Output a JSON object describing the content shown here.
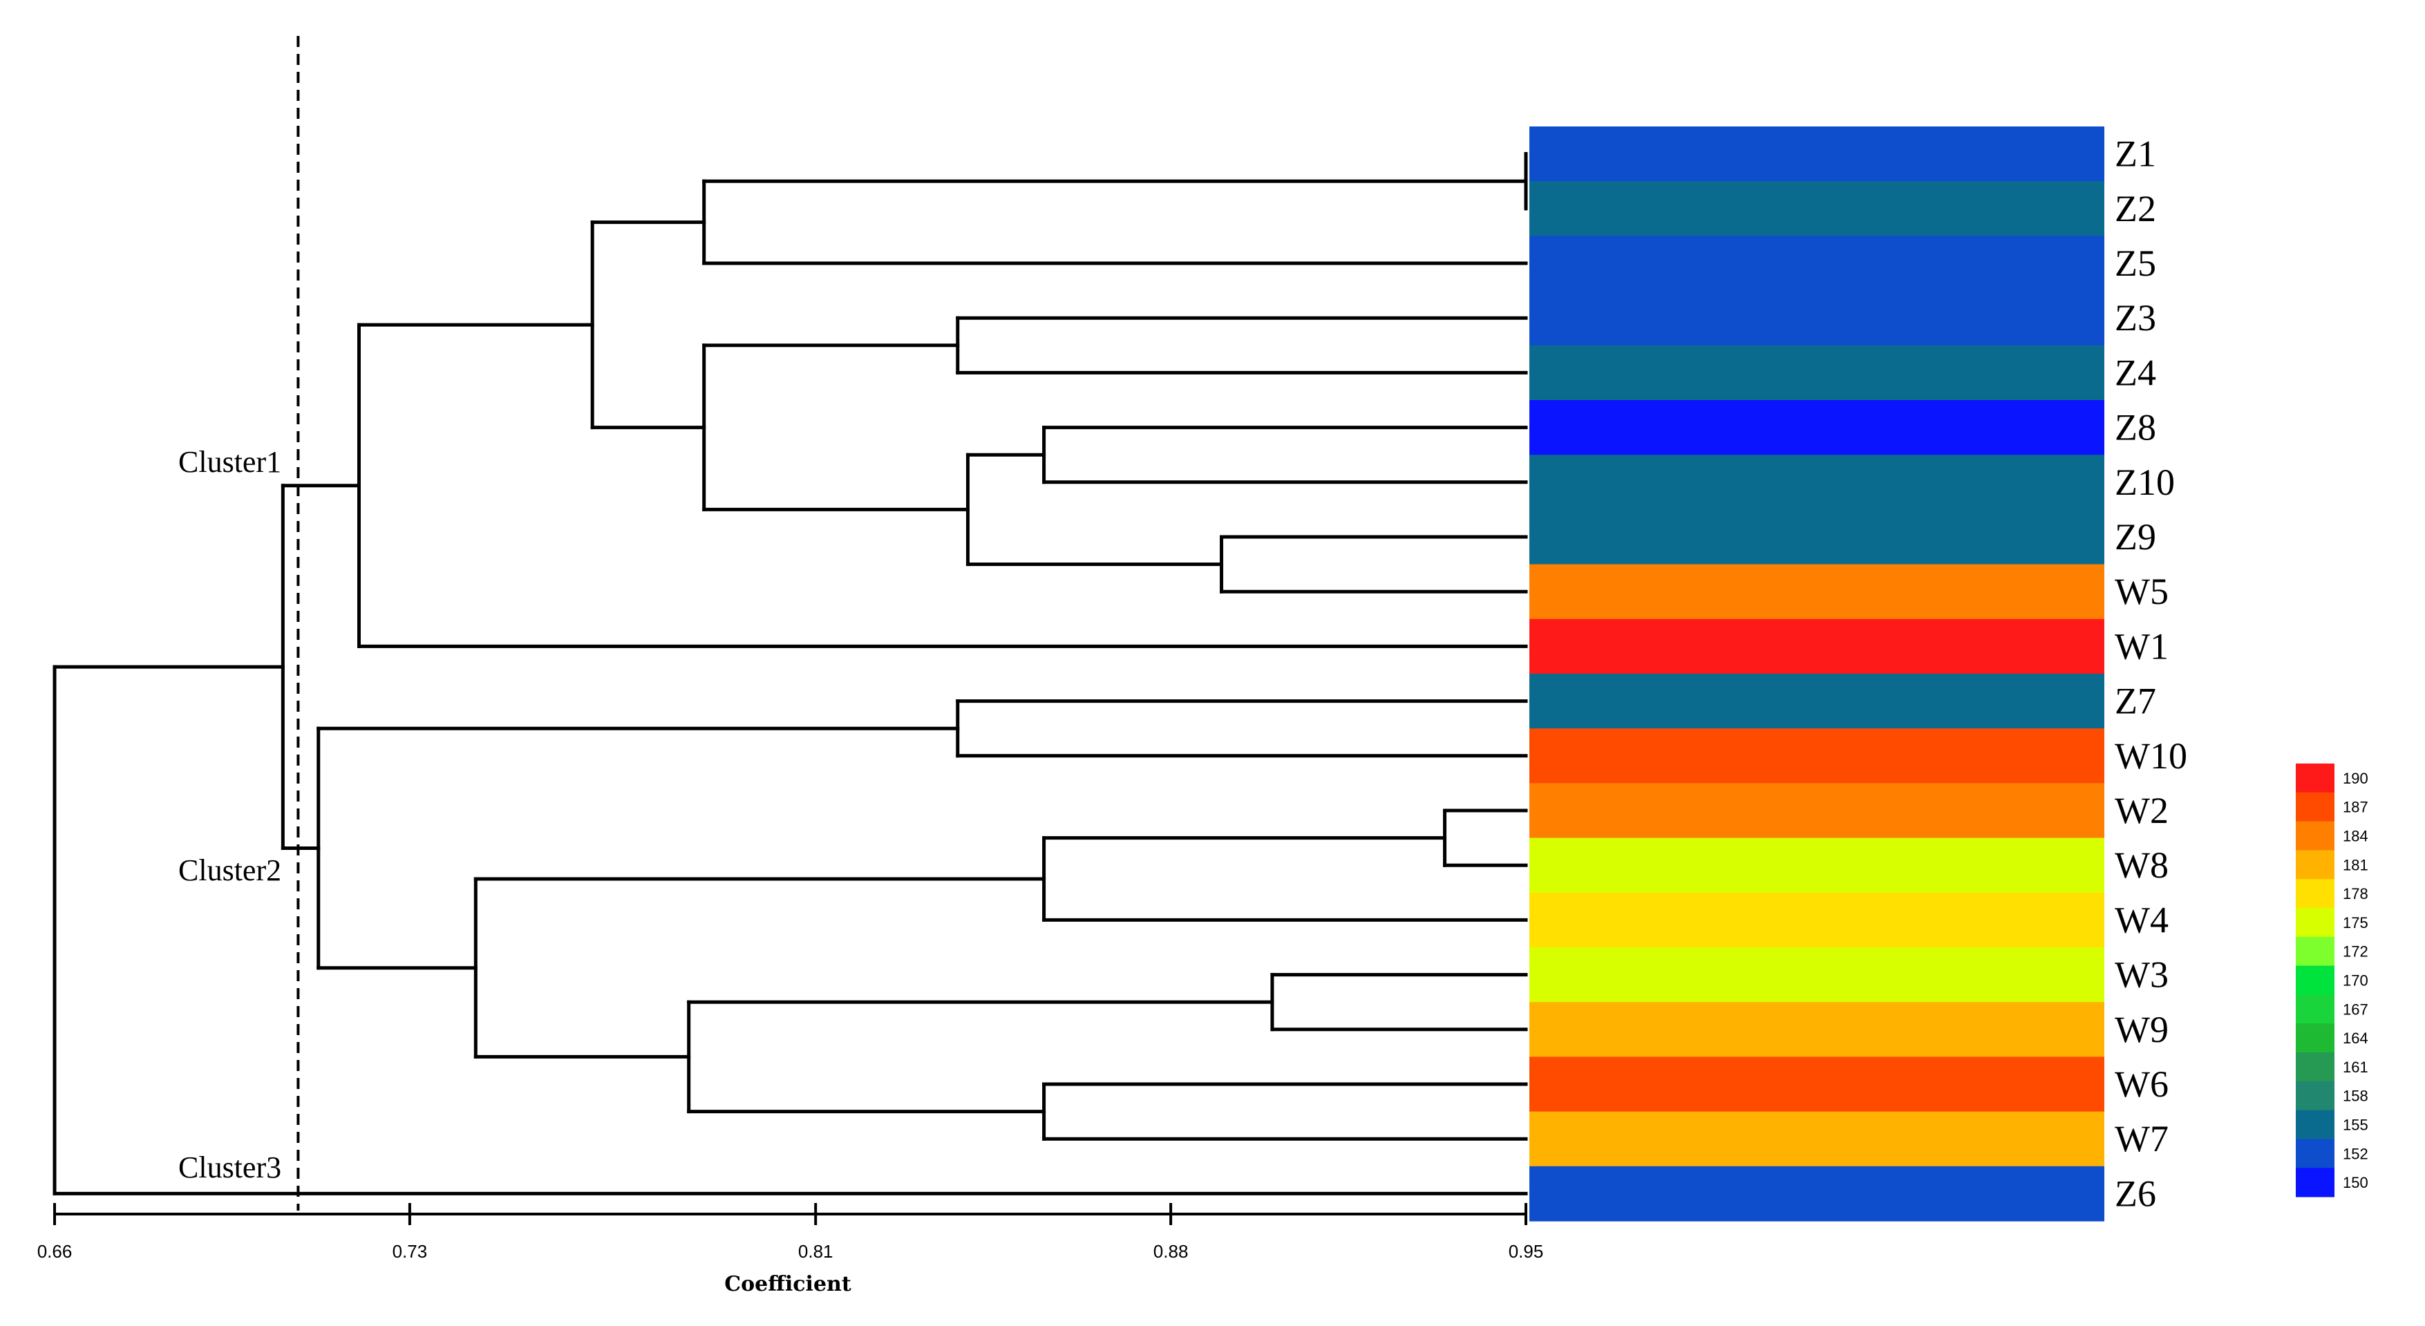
{
  "axis": {
    "title": "Coefficient",
    "ticks": [
      "0.66",
      "0.73",
      "0.81",
      "0.88",
      "0.95"
    ],
    "min": 0.66,
    "max": 0.95,
    "cutoff": 0.708
  },
  "clusters": [
    {
      "id": "c1",
      "label": "Cluster1"
    },
    {
      "id": "c2",
      "label": "Cluster2"
    },
    {
      "id": "c3",
      "label": "Cluster3"
    }
  ],
  "leaves": [
    {
      "label": "Z1",
      "value": 152
    },
    {
      "label": "Z2",
      "value": 155
    },
    {
      "label": "Z5",
      "value": 152
    },
    {
      "label": "Z3",
      "value": 152
    },
    {
      "label": "Z4",
      "value": 155
    },
    {
      "label": "Z8",
      "value": 150
    },
    {
      "label": "Z10",
      "value": 155
    },
    {
      "label": "Z9",
      "value": 155
    },
    {
      "label": "W5",
      "value": 184
    },
    {
      "label": "W1",
      "value": 190
    },
    {
      "label": "Z7",
      "value": 155
    },
    {
      "label": "W10",
      "value": 187
    },
    {
      "label": "W2",
      "value": 184
    },
    {
      "label": "W8",
      "value": 175
    },
    {
      "label": "W4",
      "value": 178
    },
    {
      "label": "W3",
      "value": 175
    },
    {
      "label": "W9",
      "value": 181
    },
    {
      "label": "W6",
      "value": 187
    },
    {
      "label": "W7",
      "value": 181
    },
    {
      "label": "Z6",
      "value": 152
    }
  ],
  "tree": {
    "h": 0.66,
    "c": [
      {
        "h": 0.705,
        "c": [
          {
            "h": 0.72,
            "c": [
              {
                "h": 0.766,
                "c": [
                  {
                    "h": 0.788,
                    "c": [
                      {
                        "h": 0.95,
                        "c": [
                          0,
                          1
                        ]
                      },
                      2
                    ]
                  },
                  {
                    "h": 0.788,
                    "c": [
                      {
                        "h": 0.838,
                        "c": [
                          3,
                          4
                        ]
                      },
                      {
                        "h": 0.84,
                        "c": [
                          {
                            "h": 0.855,
                            "c": [
                              5,
                              6
                            ]
                          },
                          {
                            "h": 0.89,
                            "c": [
                              7,
                              8
                            ]
                          }
                        ]
                      }
                    ]
                  }
                ]
              },
              9
            ]
          },
          {
            "h": 0.712,
            "c": [
              {
                "h": 0.838,
                "c": [
                  10,
                  11
                ]
              },
              {
                "h": 0.743,
                "c": [
                  {
                    "h": 0.855,
                    "c": [
                      {
                        "h": 0.934,
                        "c": [
                          12,
                          13
                        ]
                      },
                      14
                    ]
                  },
                  {
                    "h": 0.785,
                    "c": [
                      {
                        "h": 0.9,
                        "c": [
                          15,
                          16
                        ]
                      },
                      {
                        "h": 0.855,
                        "c": [
                          17,
                          18
                        ]
                      }
                    ]
                  }
                ]
              }
            ]
          }
        ]
      },
      19
    ]
  },
  "legend": {
    "labels": [
      "190",
      "187",
      "184",
      "181",
      "178",
      "175",
      "172",
      "170",
      "167",
      "164",
      "161",
      "158",
      "155",
      "152",
      "150"
    ],
    "colors": [
      "#ff1a1a",
      "#ff4b00",
      "#ff8000",
      "#ffb300",
      "#ffe000",
      "#d8ff00",
      "#7dff2e",
      "#00e23c",
      "#19d43a",
      "#1fba33",
      "#269952",
      "#21876e",
      "#0a6b8f",
      "#0e4ecc",
      "#0a14ff"
    ]
  },
  "colors": {
    "150": "#0a14ff",
    "152": "#0e4ecc",
    "155": "#0a6b8f",
    "175": "#d8ff00",
    "178": "#ffe000",
    "181": "#ffb300",
    "184": "#ff8000",
    "187": "#ff4b00",
    "190": "#ff1a1a"
  }
}
